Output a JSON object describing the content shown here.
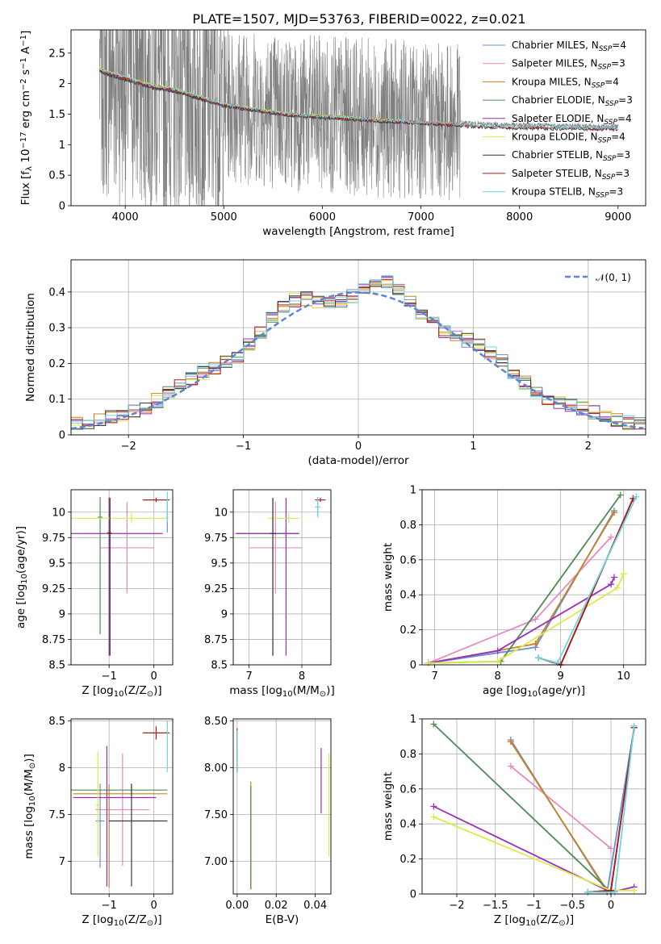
{
  "figure": {
    "title": "PLATE=1507, MJD=53763, FIBERID=0022, z=0.021"
  },
  "colors": {
    "Chabrier MILES": "#6a8fd8",
    "Salpeter MILES": "#e58bc1",
    "Kroupa MILES": "#c9821f",
    "Chabrier ELODIE": "#4f8a55",
    "Salpeter ELODIE": "#9b2fb8",
    "Kroupa ELODIE": "#dcea4a",
    "Chabrier STELIB": "#3a3a3a",
    "Salpeter STELIB": "#b01a1a",
    "Kroupa STELIB": "#6fd6de",
    "data": "#7f7f7f",
    "gaussian": "#5b86d6",
    "grid": "#b0b0b0"
  },
  "chart_data": [
    {
      "id": "spectrum",
      "type": "line",
      "xlabel": "wavelength [Angstrom, rest frame]",
      "ylabel": "Flux [f_λ 10^-17 erg cm^-2 s^-1 A^-1]",
      "xlim": [
        3450,
        9280
      ],
      "ylim": [
        0,
        2.88
      ],
      "xticks": [
        4000,
        5000,
        6000,
        7000,
        8000,
        9000
      ],
      "yticks": [
        0.0,
        0.5,
        1.0,
        1.5,
        2.0,
        2.5
      ],
      "grid": false,
      "legend_position": "upper right",
      "legend": [
        {
          "name": "Chabrier MILES",
          "nssp": "4"
        },
        {
          "name": "Salpeter MILES",
          "nssp": "3"
        },
        {
          "name": "Kroupa MILES",
          "nssp": "4"
        },
        {
          "name": "Chabrier ELODIE",
          "nssp": "3"
        },
        {
          "name": "Salpeter ELODIE",
          "nssp": "4"
        },
        {
          "name": "Kroupa ELODIE",
          "nssp": "4"
        },
        {
          "name": "Chabrier STELIB",
          "nssp": "3"
        },
        {
          "name": "Salpeter STELIB",
          "nssp": "3"
        },
        {
          "name": "Kroupa STELIB",
          "nssp": "3"
        }
      ],
      "observed_continuum": {
        "x": [
          3740,
          3800,
          3900,
          4000,
          4100,
          4200,
          4300,
          4400,
          4500,
          4600,
          4700,
          4800,
          4900,
          5000,
          5200,
          5400,
          5600,
          5800,
          6000,
          6200,
          6400,
          6600,
          6800,
          7000,
          7200,
          7400,
          7600,
          7800,
          8000,
          8200,
          8400,
          8600,
          8800,
          9000
        ],
        "y": [
          2.3,
          2.25,
          2.2,
          2.15,
          2.1,
          2.05,
          2.0,
          1.98,
          1.95,
          1.9,
          1.85,
          1.8,
          1.75,
          1.7,
          1.65,
          1.6,
          1.55,
          1.52,
          1.5,
          1.48,
          1.46,
          1.43,
          1.42,
          1.4,
          1.38,
          1.36,
          1.34,
          1.33,
          1.32,
          1.32,
          1.31,
          1.31,
          1.3,
          1.3
        ]
      },
      "model_extent_angstrom": {
        "MILES": [
          3740,
          7420
        ],
        "ELODIE": [
          3740,
          6800
        ],
        "STELIB": [
          3740,
          9000
        ]
      }
    },
    {
      "id": "residuals",
      "type": "line",
      "xlabel": "(data-model)/error",
      "ylabel": "Normed distribution",
      "xlim": [
        -2.5,
        2.5
      ],
      "ylim": [
        0,
        0.49
      ],
      "xticks": [
        -2,
        -1,
        0,
        1,
        2
      ],
      "yticks": [
        0.0,
        0.1,
        0.2,
        0.3,
        0.4
      ],
      "grid": true,
      "legend_position": "upper right",
      "series": [
        {
          "name": "𝒩(0, 1)",
          "kind": "gaussian",
          "mean": 0,
          "sigma": 1
        }
      ],
      "histogram_bin_width": 0.1
    },
    {
      "id": "age_vs_Z",
      "type": "scatter",
      "xlabel": "Z [log10(Z/Z⊙)]",
      "ylabel": "age [log10(age/yr)]",
      "xlim": [
        -1.85,
        0.42
      ],
      "ylim": [
        8.5,
        10.22
      ],
      "xticks": [
        -1,
        0
      ],
      "yticks": [
        8.5,
        8.75,
        9.0,
        9.25,
        9.5,
        9.75,
        10.0
      ],
      "grid": true,
      "errorbars": [
        {
          "model": "Chabrier MILES",
          "x": 0.3,
          "y": 9.95,
          "xerr": [
            0.02,
            0.02
          ],
          "yerr": [
            0.15,
            0.15
          ]
        },
        {
          "model": "Salpeter MILES",
          "x": -0.6,
          "y": 9.65,
          "xerr": [
            0.6,
            0.6
          ],
          "yerr": [
            0.45,
            0.45
          ]
        },
        {
          "model": "Kroupa MILES",
          "x": -1.0,
          "y": 9.8,
          "xerr": [
            0.05,
            0.05
          ],
          "yerr": [
            1.2,
            0.35
          ]
        },
        {
          "model": "Chabrier ELODIE",
          "x": -1.2,
          "y": 9.95,
          "xerr": [
            0.05,
            0.05
          ],
          "yerr": [
            1.15,
            0.2
          ]
        },
        {
          "model": "Salpeter ELODIE",
          "x": -1.0,
          "y": 9.79,
          "xerr": [
            0.9,
            1.2
          ],
          "yerr": [
            1.2,
            0.35
          ]
        },
        {
          "model": "Kroupa ELODIE",
          "x": -0.5,
          "y": 9.94,
          "xerr": [
            1.35,
            0.8
          ],
          "yerr": [
            0.05,
            0.05
          ]
        },
        {
          "model": "Chabrier STELIB",
          "x": -0.98,
          "y": 9.79,
          "xerr": [
            0.05,
            0.05
          ],
          "yerr": [
            1.2,
            0.35
          ]
        },
        {
          "model": "Salpeter STELIB",
          "x": 0.05,
          "y": 10.12,
          "xerr": [
            0.3,
            0.3
          ],
          "yerr": [
            0.02,
            0.02
          ]
        },
        {
          "model": "Kroupa STELIB",
          "x": 0.3,
          "y": 10.05,
          "xerr": [
            0.02,
            0.02
          ],
          "yerr": [
            0.15,
            0.15
          ]
        }
      ]
    },
    {
      "id": "age_vs_mass",
      "type": "scatter",
      "xlabel": "mass [log10(M/M⊙)]",
      "ylabel": "",
      "xlim": [
        6.7,
        8.55
      ],
      "ylim": [
        8.5,
        10.22
      ],
      "xticks": [
        7,
        8
      ],
      "yticks": [
        8.5,
        8.75,
        9.0,
        9.25,
        9.5,
        9.75,
        10.0
      ],
      "grid": true,
      "errorbars": [
        {
          "model": "Chabrier MILES",
          "x": 8.3,
          "y": 10.05,
          "xerr": [
            0.05,
            0.05
          ],
          "yerr": [
            0.1,
            0.1
          ]
        },
        {
          "model": "Salpeter MILES",
          "x": 7.5,
          "y": 9.65,
          "xerr": [
            0.5,
            0.5
          ],
          "yerr": [
            0.45,
            0.45
          ]
        },
        {
          "model": "Kroupa MILES",
          "x": 7.45,
          "y": 9.79,
          "xerr": [
            0.05,
            0.05
          ],
          "yerr": [
            1.2,
            0.35
          ]
        },
        {
          "model": "Chabrier ELODIE",
          "x": 7.7,
          "y": 9.79,
          "xerr": [
            0.95,
            0.25
          ],
          "yerr": [
            0.05,
            0.05
          ]
        },
        {
          "model": "Salpeter ELODIE",
          "x": 7.7,
          "y": 9.79,
          "xerr": [
            0.95,
            0.25
          ],
          "yerr": [
            1.2,
            0.35
          ]
        },
        {
          "model": "Kroupa ELODIE",
          "x": 7.75,
          "y": 9.94,
          "xerr": [
            0.4,
            0.2
          ],
          "yerr": [
            0.05,
            0.05
          ]
        },
        {
          "model": "Chabrier STELIB",
          "x": 7.45,
          "y": 9.79,
          "xerr": [
            0.05,
            0.05
          ],
          "yerr": [
            1.2,
            0.35
          ]
        },
        {
          "model": "Salpeter STELIB",
          "x": 8.35,
          "y": 10.12,
          "xerr": [
            0.1,
            0.1
          ],
          "yerr": [
            0.02,
            0.02
          ]
        },
        {
          "model": "Kroupa STELIB",
          "x": 8.3,
          "y": 10.05,
          "xerr": [
            0.05,
            0.05
          ],
          "yerr": [
            0.1,
            0.1
          ]
        }
      ]
    },
    {
      "id": "massweight_vs_age",
      "type": "line",
      "xlabel": "age [log10(age/yr)]",
      "ylabel": "mass weight",
      "xlim": [
        6.8,
        10.35
      ],
      "ylim": [
        0,
        1.0
      ],
      "xticks": [
        7,
        8,
        9,
        10
      ],
      "yticks": [
        0.0,
        0.2,
        0.4,
        0.6,
        0.8,
        1.0
      ],
      "grid": true,
      "series": [
        {
          "name": "Chabrier MILES",
          "x": [
            6.9,
            8.6,
            9.85
          ],
          "y": [
            0.01,
            0.1,
            0.88
          ]
        },
        {
          "name": "Salpeter MILES",
          "x": [
            6.9,
            8.6,
            9.8
          ],
          "y": [
            0.01,
            0.26,
            0.73
          ]
        },
        {
          "name": "Kroupa MILES",
          "x": [
            6.9,
            8.6,
            9.85
          ],
          "y": [
            0.01,
            0.12,
            0.87
          ]
        },
        {
          "name": "Chabrier ELODIE",
          "x": [
            6.9,
            8.05,
            9.95
          ],
          "y": [
            0.01,
            0.02,
            0.97
          ]
        },
        {
          "name": "Salpeter ELODIE",
          "x": [
            6.9,
            8.0,
            9.8,
            9.85
          ],
          "y": [
            0.01,
            0.08,
            0.46,
            0.5
          ]
        },
        {
          "name": "Kroupa ELODIE",
          "x": [
            6.9,
            8.0,
            9.9,
            10.0
          ],
          "y": [
            0.01,
            0.02,
            0.44,
            0.52
          ]
        },
        {
          "name": "Chabrier STELIB",
          "x": [
            8.65,
            9.0,
            10.15
          ],
          "y": [
            0.04,
            0.0,
            0.95
          ]
        },
        {
          "name": "Salpeter STELIB",
          "x": [
            8.65,
            9.0,
            10.15
          ],
          "y": [
            0.04,
            0.0,
            0.95
          ]
        },
        {
          "name": "Kroupa STELIB",
          "x": [
            8.65,
            8.95,
            10.2
          ],
          "y": [
            0.04,
            0.01,
            0.96
          ]
        }
      ]
    },
    {
      "id": "mass_vs_Z",
      "type": "scatter",
      "xlabel": "Z [log10(Z/Z⊙)]",
      "ylabel": "mass [log10(M/M⊙)]",
      "xlim": [
        -1.85,
        0.42
      ],
      "ylim": [
        6.65,
        8.52
      ],
      "xticks": [
        -1,
        0
      ],
      "yticks": [
        7.0,
        7.5,
        8.0,
        8.5
      ],
      "grid": true,
      "errorbars": [
        {
          "model": "Chabrier MILES",
          "x": -1.2,
          "y": 7.43,
          "xerr": [
            0.1,
            0.1
          ],
          "yerr": [
            0.5,
            0.4
          ]
        },
        {
          "model": "Salpeter MILES",
          "x": -0.7,
          "y": 7.55,
          "xerr": [
            0.6,
            0.6
          ],
          "yerr": [
            0.6,
            0.6
          ]
        },
        {
          "model": "Kroupa MILES",
          "x": -1.0,
          "y": 7.72,
          "xerr": [
            0.8,
            1.3
          ],
          "yerr": [
            1.0,
            0.1
          ]
        },
        {
          "model": "Chabrier ELODIE",
          "x": -0.5,
          "y": 7.76,
          "xerr": [
            1.35,
            0.8
          ],
          "yerr": [
            0.05,
            0.05
          ]
        },
        {
          "model": "Salpeter ELODIE",
          "x": -1.05,
          "y": 7.68,
          "xerr": [
            0.75,
            1.1
          ],
          "yerr": [
            0.95,
            0.55
          ]
        },
        {
          "model": "Kroupa ELODIE",
          "x": -1.25,
          "y": 7.6,
          "xerr": [
            0.05,
            0.05
          ],
          "yerr": [
            0.55,
            0.57
          ]
        },
        {
          "model": "Chabrier STELIB",
          "x": -0.5,
          "y": 7.43,
          "xerr": [
            0.5,
            0.8
          ],
          "yerr": [
            0.7,
            0.4
          ]
        },
        {
          "model": "Salpeter STELIB",
          "x": 0.05,
          "y": 8.37,
          "xerr": [
            0.3,
            0.3
          ],
          "yerr": [
            0.07,
            0.07
          ]
        },
        {
          "model": "Kroupa STELIB",
          "x": 0.3,
          "y": 8.2,
          "xerr": [
            0.02,
            0.02
          ],
          "yerr": [
            0.25,
            0.3
          ]
        }
      ]
    },
    {
      "id": "mass_vs_ebv",
      "type": "scatter",
      "xlabel": "E(B-V)",
      "ylabel": "",
      "xlim": [
        -0.002,
        0.048
      ],
      "ylim": [
        6.65,
        8.52
      ],
      "xticks": [
        0.0,
        0.02,
        0.04
      ],
      "yticks": [
        7.0,
        7.5,
        8.0,
        8.5
      ],
      "grid": true,
      "errorbars": [
        {
          "model": "Chabrier MILES",
          "x": 0.0,
          "y": 8.2,
          "xerr": [
            0,
            0
          ],
          "yerr": [
            0.25,
            0.2
          ]
        },
        {
          "model": "Salpeter MILES",
          "x": 0.0,
          "y": 8.25,
          "xerr": [
            0,
            0
          ],
          "yerr": [
            0.15,
            0.15
          ]
        },
        {
          "model": "Kroupa MILES",
          "x": 0.007,
          "y": 7.3,
          "xerr": [
            0,
            0
          ],
          "yerr": [
            0.6,
            0.55
          ]
        },
        {
          "model": "Chabrier ELODIE",
          "x": 0.007,
          "y": 7.3,
          "xerr": [
            0,
            0
          ],
          "yerr": [
            0.6,
            0.5
          ]
        },
        {
          "model": "Salpeter ELODIE",
          "x": 0.043,
          "y": 7.86,
          "xerr": [
            0,
            0
          ],
          "yerr": [
            0.35,
            0.35
          ]
        },
        {
          "model": "Kroupa ELODIE",
          "x": 0.047,
          "y": 7.6,
          "xerr": [
            0,
            0
          ],
          "yerr": [
            0.55,
            0.55
          ]
        },
        {
          "model": "Chabrier STELIB",
          "x": 0.0,
          "y": 8.2,
          "xerr": [
            0,
            0
          ],
          "yerr": [
            0.2,
            0.2
          ]
        },
        {
          "model": "Salpeter STELIB",
          "x": 0.0,
          "y": 8.3,
          "xerr": [
            0,
            0
          ],
          "yerr": [
            0.12,
            0.12
          ]
        },
        {
          "model": "Kroupa STELIB",
          "x": 0.0,
          "y": 8.2,
          "xerr": [
            0,
            0
          ],
          "yerr": [
            0.2,
            0.2
          ]
        }
      ]
    },
    {
      "id": "massweight_vs_Z",
      "type": "line",
      "xlabel": "Z [log10(Z/Z⊙)]",
      "ylabel": "mass weight",
      "xlim": [
        -2.45,
        0.45
      ],
      "ylim": [
        0,
        1.0
      ],
      "xticks": [
        -2.0,
        -1.5,
        -1.0,
        -0.5,
        0.0
      ],
      "yticks": [
        0.0,
        0.2,
        0.4,
        0.6,
        0.8,
        1.0
      ],
      "grid": true,
      "series": [
        {
          "name": "Chabrier MILES",
          "x": [
            -1.3,
            -0.05,
            0.3
          ],
          "y": [
            0.88,
            0.01,
            0.95
          ]
        },
        {
          "name": "Salpeter MILES",
          "x": [
            -1.3,
            0.0
          ],
          "y": [
            0.73,
            0.26
          ]
        },
        {
          "name": "Kroupa MILES",
          "x": [
            -1.3,
            -0.05
          ],
          "y": [
            0.87,
            0.02
          ]
        },
        {
          "name": "Chabrier ELODIE",
          "x": [
            -2.3,
            0.0
          ],
          "y": [
            0.97,
            0.01
          ]
        },
        {
          "name": "Salpeter ELODIE",
          "x": [
            -2.3,
            0.0,
            0.3
          ],
          "y": [
            0.5,
            0.01,
            0.04
          ]
        },
        {
          "name": "Kroupa ELODIE",
          "x": [
            -2.3,
            0.0,
            0.3
          ],
          "y": [
            0.44,
            0.02,
            0.02
          ]
        },
        {
          "name": "Chabrier STELIB",
          "x": [
            -0.3,
            0.0,
            0.3
          ],
          "y": [
            0.01,
            0.02,
            0.95
          ]
        },
        {
          "name": "Salpeter STELIB",
          "x": [
            -0.3,
            0.0,
            0.3
          ],
          "y": [
            0.01,
            0.02,
            0.95
          ]
        },
        {
          "name": "Kroupa STELIB",
          "x": [
            -0.3,
            0.05,
            0.3
          ],
          "y": [
            0.01,
            0.01,
            0.96
          ]
        }
      ]
    }
  ]
}
